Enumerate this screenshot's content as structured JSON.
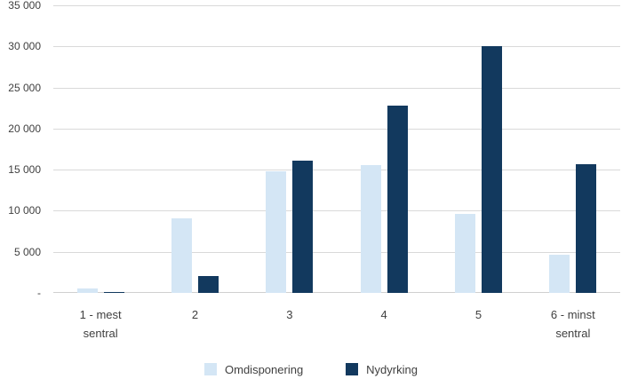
{
  "colors": {
    "background": "#ffffff",
    "text": "#404040",
    "gridline": "#d9d9d9",
    "axis_line": "#d0d0d0",
    "series_light": "#d4e6f5",
    "series_dark": "#12395e"
  },
  "chart_data": {
    "type": "bar",
    "title": "",
    "xlabel": "",
    "ylabel": "",
    "categories": [
      "1 - mest sentral",
      "2",
      "3",
      "4",
      "5",
      "6 - minst sentral"
    ],
    "category_label_lines": [
      [
        "1 - mest",
        "sentral"
      ],
      [
        "2"
      ],
      [
        "3"
      ],
      [
        "4"
      ],
      [
        "5"
      ],
      [
        "6 - minst",
        "sentral"
      ]
    ],
    "series": [
      {
        "name": "Omdisponering",
        "color": "#d4e6f5",
        "values": [
          550,
          9100,
          14800,
          15600,
          9600,
          4600
        ]
      },
      {
        "name": "Nydyrking",
        "color": "#12395e",
        "values": [
          150,
          2000,
          16100,
          22800,
          30000,
          15700
        ]
      }
    ],
    "ylim": [
      0,
      35000
    ],
    "ytick_step": 5000,
    "ytick_labels": [
      "-",
      "5 000",
      "10 000",
      "15 000",
      "20 000",
      "25 000",
      "30 000",
      "35 000"
    ],
    "grid": true,
    "legend_position": "bottom"
  }
}
